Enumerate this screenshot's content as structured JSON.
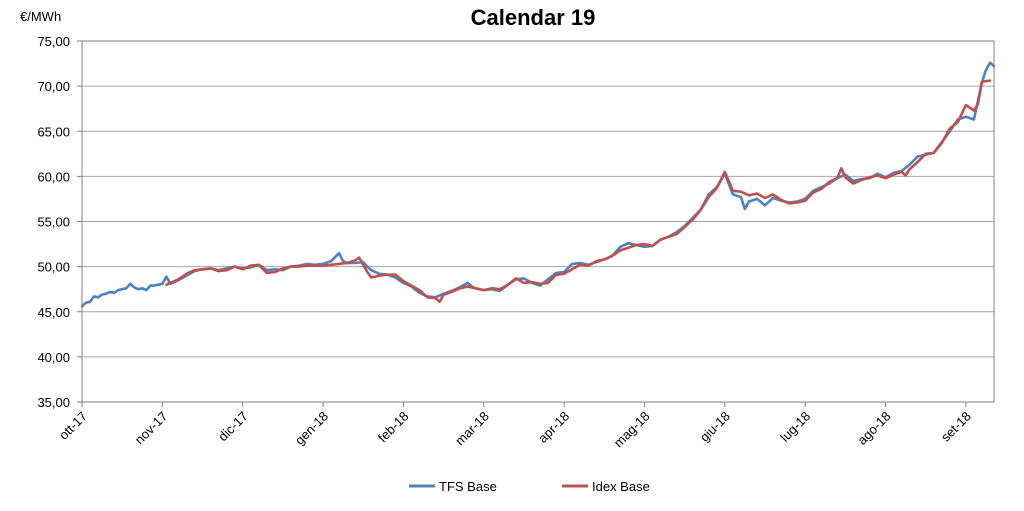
{
  "chart_data": {
    "type": "line",
    "title": "Calendar 19",
    "ylabel": "€/MWh",
    "ylim": [
      35,
      75
    ],
    "ystep": 5,
    "ytick_labels": [
      "35,00",
      "40,00",
      "45,00",
      "50,00",
      "55,00",
      "60,00",
      "65,00",
      "70,00",
      "75,00"
    ],
    "xlim": [
      0,
      11.35
    ],
    "x_ticks": [
      {
        "x": 0,
        "label": "ott-17"
      },
      {
        "x": 1,
        "label": "nov-17"
      },
      {
        "x": 2,
        "label": "dic-17"
      },
      {
        "x": 3,
        "label": "gen-18"
      },
      {
        "x": 4,
        "label": "feb-18"
      },
      {
        "x": 5,
        "label": "mar-18"
      },
      {
        "x": 6,
        "label": "apr-18"
      },
      {
        "x": 7,
        "label": "mag-18"
      },
      {
        "x": 8,
        "label": "giu-18"
      },
      {
        "x": 9,
        "label": "lug-18"
      },
      {
        "x": 10,
        "label": "ago-18"
      },
      {
        "x": 11,
        "label": "set-18"
      }
    ],
    "grid": true,
    "legend": "bottom",
    "series": [
      {
        "name": "TFS Base",
        "color": "#4f81bd",
        "points": [
          [
            0.0,
            45.6
          ],
          [
            0.05,
            46.0
          ],
          [
            0.1,
            46.1
          ],
          [
            0.15,
            46.7
          ],
          [
            0.2,
            46.6
          ],
          [
            0.25,
            46.9
          ],
          [
            0.3,
            47.0
          ],
          [
            0.35,
            47.2
          ],
          [
            0.4,
            47.1
          ],
          [
            0.45,
            47.4
          ],
          [
            0.5,
            47.5
          ],
          [
            0.55,
            47.6
          ],
          [
            0.6,
            48.1
          ],
          [
            0.65,
            47.7
          ],
          [
            0.7,
            47.5
          ],
          [
            0.75,
            47.6
          ],
          [
            0.8,
            47.4
          ],
          [
            0.85,
            47.9
          ],
          [
            0.9,
            47.9
          ],
          [
            0.95,
            48.0
          ],
          [
            1.0,
            48.1
          ],
          [
            1.05,
            48.9
          ],
          [
            1.1,
            48.1
          ],
          [
            1.2,
            48.5
          ],
          [
            1.3,
            49.0
          ],
          [
            1.4,
            49.5
          ],
          [
            1.5,
            49.7
          ],
          [
            1.6,
            49.8
          ],
          [
            1.7,
            49.6
          ],
          [
            1.8,
            49.8
          ],
          [
            1.9,
            50.0
          ],
          [
            2.0,
            49.8
          ],
          [
            2.1,
            49.9
          ],
          [
            2.2,
            50.2
          ],
          [
            2.3,
            49.6
          ],
          [
            2.4,
            49.7
          ],
          [
            2.5,
            49.6
          ],
          [
            2.6,
            50.0
          ],
          [
            2.7,
            50.1
          ],
          [
            2.8,
            50.3
          ],
          [
            2.9,
            50.2
          ],
          [
            3.0,
            50.3
          ],
          [
            3.1,
            50.6
          ],
          [
            3.2,
            51.5
          ],
          [
            3.25,
            50.6
          ],
          [
            3.3,
            50.4
          ],
          [
            3.4,
            50.4
          ],
          [
            3.5,
            50.5
          ],
          [
            3.55,
            50.0
          ],
          [
            3.6,
            49.6
          ],
          [
            3.7,
            49.2
          ],
          [
            3.8,
            49.1
          ],
          [
            3.9,
            48.8
          ],
          [
            4.0,
            48.2
          ],
          [
            4.1,
            47.8
          ],
          [
            4.2,
            47.1
          ],
          [
            4.3,
            46.7
          ],
          [
            4.4,
            46.6
          ],
          [
            4.5,
            47.0
          ],
          [
            4.6,
            47.3
          ],
          [
            4.7,
            47.7
          ],
          [
            4.8,
            48.2
          ],
          [
            4.85,
            47.8
          ],
          [
            4.9,
            47.6
          ],
          [
            5.0,
            47.4
          ],
          [
            5.1,
            47.5
          ],
          [
            5.2,
            47.3
          ],
          [
            5.3,
            48.0
          ],
          [
            5.4,
            48.6
          ],
          [
            5.5,
            48.7
          ],
          [
            5.6,
            48.2
          ],
          [
            5.7,
            47.9
          ],
          [
            5.8,
            48.6
          ],
          [
            5.9,
            49.3
          ],
          [
            6.0,
            49.4
          ],
          [
            6.1,
            50.3
          ],
          [
            6.2,
            50.4
          ],
          [
            6.3,
            50.2
          ],
          [
            6.4,
            50.5
          ],
          [
            6.5,
            50.8
          ],
          [
            6.6,
            51.2
          ],
          [
            6.7,
            52.2
          ],
          [
            6.8,
            52.6
          ],
          [
            6.9,
            52.4
          ],
          [
            7.0,
            52.2
          ],
          [
            7.1,
            52.3
          ],
          [
            7.2,
            53.0
          ],
          [
            7.3,
            53.3
          ],
          [
            7.4,
            53.8
          ],
          [
            7.5,
            54.5
          ],
          [
            7.6,
            55.4
          ],
          [
            7.7,
            56.3
          ],
          [
            7.8,
            58.0
          ],
          [
            7.9,
            58.8
          ],
          [
            8.0,
            60.3
          ],
          [
            8.1,
            58.0
          ],
          [
            8.2,
            57.7
          ],
          [
            8.25,
            56.4
          ],
          [
            8.3,
            57.2
          ],
          [
            8.4,
            57.5
          ],
          [
            8.5,
            56.8
          ],
          [
            8.6,
            57.6
          ],
          [
            8.7,
            57.3
          ],
          [
            8.8,
            57.1
          ],
          [
            8.9,
            57.2
          ],
          [
            9.0,
            57.5
          ],
          [
            9.1,
            58.4
          ],
          [
            9.2,
            58.8
          ],
          [
            9.3,
            59.2
          ],
          [
            9.4,
            59.8
          ],
          [
            9.5,
            60.2
          ],
          [
            9.6,
            59.5
          ],
          [
            9.7,
            59.7
          ],
          [
            9.8,
            59.8
          ],
          [
            9.9,
            60.3
          ],
          [
            10.0,
            59.9
          ],
          [
            10.1,
            60.4
          ],
          [
            10.2,
            60.6
          ],
          [
            10.3,
            61.3
          ],
          [
            10.4,
            62.2
          ],
          [
            10.5,
            62.4
          ],
          [
            10.6,
            62.6
          ],
          [
            10.7,
            63.8
          ],
          [
            10.8,
            65.0
          ],
          [
            10.9,
            66.3
          ],
          [
            11.0,
            66.6
          ],
          [
            11.1,
            66.3
          ],
          [
            11.2,
            70.4
          ],
          [
            11.25,
            71.8
          ],
          [
            11.3,
            72.6
          ],
          [
            11.35,
            72.2
          ]
        ]
      },
      {
        "name": "Idex Base",
        "color": "#c0504d",
        "points": [
          [
            1.05,
            48.0
          ],
          [
            1.1,
            48.2
          ],
          [
            1.2,
            48.6
          ],
          [
            1.3,
            49.2
          ],
          [
            1.4,
            49.6
          ],
          [
            1.5,
            49.7
          ],
          [
            1.6,
            49.8
          ],
          [
            1.7,
            49.5
          ],
          [
            1.8,
            49.6
          ],
          [
            1.9,
            50.0
          ],
          [
            2.0,
            49.7
          ],
          [
            2.1,
            50.1
          ],
          [
            2.2,
            50.2
          ],
          [
            2.3,
            49.3
          ],
          [
            2.4,
            49.4
          ],
          [
            2.5,
            49.8
          ],
          [
            2.6,
            50.0
          ],
          [
            2.7,
            50.0
          ],
          [
            2.8,
            50.1
          ],
          [
            2.9,
            50.1
          ],
          [
            3.0,
            50.1
          ],
          [
            3.1,
            50.2
          ],
          [
            3.2,
            50.3
          ],
          [
            3.3,
            50.4
          ],
          [
            3.4,
            50.7
          ],
          [
            3.45,
            51.0
          ],
          [
            3.5,
            50.2
          ],
          [
            3.55,
            49.4
          ],
          [
            3.6,
            48.8
          ],
          [
            3.7,
            49.0
          ],
          [
            3.8,
            49.1
          ],
          [
            3.9,
            49.1
          ],
          [
            4.0,
            48.4
          ],
          [
            4.1,
            47.9
          ],
          [
            4.2,
            47.4
          ],
          [
            4.3,
            46.6
          ],
          [
            4.4,
            46.5
          ],
          [
            4.45,
            46.1
          ],
          [
            4.5,
            46.9
          ],
          [
            4.6,
            47.2
          ],
          [
            4.7,
            47.6
          ],
          [
            4.8,
            47.8
          ],
          [
            4.9,
            47.6
          ],
          [
            5.0,
            47.4
          ],
          [
            5.1,
            47.6
          ],
          [
            5.2,
            47.5
          ],
          [
            5.3,
            48.0
          ],
          [
            5.4,
            48.7
          ],
          [
            5.5,
            48.2
          ],
          [
            5.6,
            48.3
          ],
          [
            5.7,
            48.1
          ],
          [
            5.8,
            48.2
          ],
          [
            5.9,
            49.1
          ],
          [
            6.0,
            49.2
          ],
          [
            6.1,
            49.7
          ],
          [
            6.2,
            50.2
          ],
          [
            6.3,
            50.1
          ],
          [
            6.4,
            50.6
          ],
          [
            6.5,
            50.8
          ],
          [
            6.6,
            51.2
          ],
          [
            6.7,
            51.8
          ],
          [
            6.8,
            52.1
          ],
          [
            6.9,
            52.4
          ],
          [
            7.0,
            52.5
          ],
          [
            7.1,
            52.3
          ],
          [
            7.2,
            53.0
          ],
          [
            7.3,
            53.3
          ],
          [
            7.4,
            53.6
          ],
          [
            7.5,
            54.4
          ],
          [
            7.6,
            55.2
          ],
          [
            7.7,
            56.3
          ],
          [
            7.8,
            57.7
          ],
          [
            7.9,
            58.7
          ],
          [
            8.0,
            60.5
          ],
          [
            8.1,
            58.4
          ],
          [
            8.2,
            58.3
          ],
          [
            8.3,
            57.9
          ],
          [
            8.4,
            58.1
          ],
          [
            8.5,
            57.6
          ],
          [
            8.6,
            58.0
          ],
          [
            8.7,
            57.4
          ],
          [
            8.8,
            57.0
          ],
          [
            8.9,
            57.1
          ],
          [
            9.0,
            57.3
          ],
          [
            9.1,
            58.2
          ],
          [
            9.2,
            58.6
          ],
          [
            9.3,
            59.4
          ],
          [
            9.4,
            59.8
          ],
          [
            9.45,
            60.9
          ],
          [
            9.5,
            59.9
          ],
          [
            9.6,
            59.2
          ],
          [
            9.7,
            59.6
          ],
          [
            9.8,
            59.9
          ],
          [
            9.9,
            60.1
          ],
          [
            10.0,
            59.8
          ],
          [
            10.1,
            60.2
          ],
          [
            10.2,
            60.5
          ],
          [
            10.25,
            60.1
          ],
          [
            10.3,
            60.8
          ],
          [
            10.4,
            61.6
          ],
          [
            10.5,
            62.5
          ],
          [
            10.6,
            62.6
          ],
          [
            10.7,
            63.7
          ],
          [
            10.8,
            65.3
          ],
          [
            10.9,
            66.0
          ],
          [
            11.0,
            67.9
          ],
          [
            11.1,
            67.3
          ],
          [
            11.15,
            68.0
          ],
          [
            11.2,
            70.5
          ],
          [
            11.3,
            70.6
          ]
        ]
      }
    ]
  }
}
